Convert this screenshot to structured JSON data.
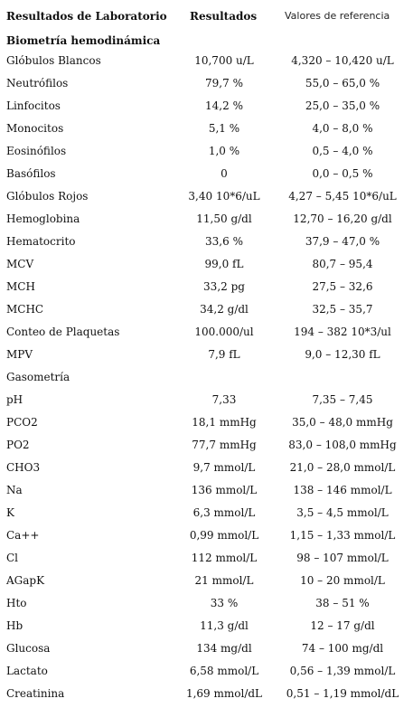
{
  "header": {
    "col_test": "Resultados de Laboratorio",
    "col_result": "Resultados",
    "col_reference": "Valores de referencia"
  },
  "section_title": "Biometría hemodinámica",
  "rows": [
    {
      "name": "Glóbulos Blancos",
      "result": "10,700 u/L",
      "reference": "4,320 – 10,420 u/L"
    },
    {
      "name": "Neutrófilos",
      "result": "79,7 %",
      "reference": "55,0 – 65,0 %"
    },
    {
      "name": "Linfocitos",
      "result": "14,2 %",
      "reference": "25,0 – 35,0 %"
    },
    {
      "name": "Monocitos",
      "result": "5,1 %",
      "reference": "4,0 – 8,0 %"
    },
    {
      "name": "Eosinófilos",
      "result": "1,0 %",
      "reference": "0,5 – 4,0 %"
    },
    {
      "name": "Basófilos",
      "result": "0",
      "reference": "0,0 – 0,5 %"
    },
    {
      "name": "Glóbulos Rojos",
      "result": "3,40 10*6/uL",
      "reference": "4,27 – 5,45 10*6/uL"
    },
    {
      "name": "Hemoglobina",
      "result": "11,50 g/dl",
      "reference": "12,70 – 16,20 g/dl"
    },
    {
      "name": "Hematocrito",
      "result": "33,6 %",
      "reference": "37,9 – 47,0 %"
    },
    {
      "name": "MCV",
      "result": "99,0 fL",
      "reference": "80,7 – 95,4"
    },
    {
      "name": "MCH",
      "result": "33,2 pg",
      "reference": "27,5 – 32,6"
    },
    {
      "name": "MCHC",
      "result": "34,2 g/dl",
      "reference": "32,5 – 35,7"
    },
    {
      "name": "Conteo de Plaquetas",
      "result": "100.000/ul",
      "reference": "194 – 382 10*3/ul"
    },
    {
      "name": "MPV",
      "result": "7,9 fL",
      "reference": "9,0 – 12,30 fL"
    },
    {
      "name": "Gasometría",
      "result": "",
      "reference": ""
    },
    {
      "name": "pH",
      "result": "7,33",
      "reference": "7,35 – 7,45"
    },
    {
      "name": "PCO2",
      "result": "18,1 mmHg",
      "reference": "35,0 – 48,0 mmHg"
    },
    {
      "name": "PO2",
      "result": "77,7 mmHg",
      "reference": "83,0 – 108,0 mmHg"
    },
    {
      "name": "CHO3",
      "result": "9,7 mmol/L",
      "reference": "21,0 – 28,0 mmol/L"
    },
    {
      "name": "Na",
      "result": "136 mmol/L",
      "reference": "138 – 146 mmol/L"
    },
    {
      "name": "K",
      "result": "6,3 mmol/L",
      "reference": "3,5 – 4,5 mmol/L"
    },
    {
      "name": "Ca++",
      "result": "0,99 mmol/L",
      "reference": "1,15 – 1,33 mmol/L"
    },
    {
      "name": "Cl",
      "result": "112 mmol/L",
      "reference": "98 – 107 mmol/L"
    },
    {
      "name": "AGapK",
      "result": "21 mmol/L",
      "reference": "10 – 20 mmol/L"
    },
    {
      "name": "Hto",
      "result": "33 %",
      "reference": "38 – 51 %"
    },
    {
      "name": "Hb",
      "result": "11,3 g/dl",
      "reference": "12 – 17 g/dl"
    },
    {
      "name": "Glucosa",
      "result": "134 mg/dl",
      "reference": "74 – 100 mg/dl"
    },
    {
      "name": "Lactato",
      "result": "6,58 mmol/L",
      "reference": "0,56 – 1,39 mmol/L"
    },
    {
      "name": "Creatinina",
      "result": "1,69 mmol/dL",
      "reference": "0,51 – 1,19 mmol/dL"
    }
  ]
}
